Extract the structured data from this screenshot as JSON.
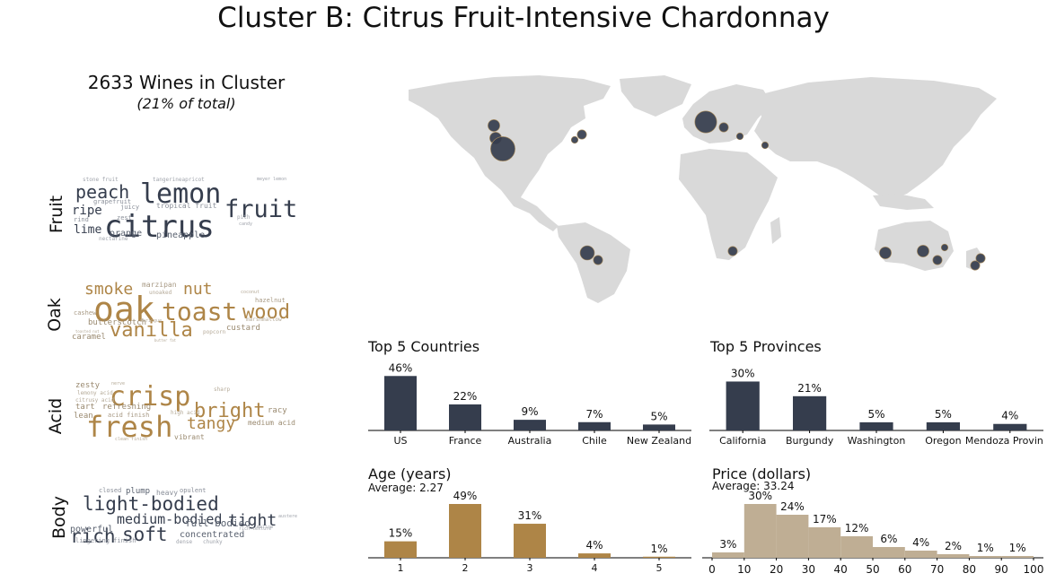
{
  "title": "Cluster B: Citrus Fruit-Intensive Chardonnay",
  "cluster": {
    "count_text": "2633 Wines in Cluster",
    "share_text": "(21% of total)"
  },
  "colors": {
    "navy": "#353d4d",
    "gold": "#ae8547",
    "tan": "#bfae94",
    "land": "#d9d9d9"
  },
  "wordclouds": [
    {
      "label": "Fruit",
      "words": [
        {
          "t": "citrus",
          "s": 34,
          "c": "#353d4d"
        },
        {
          "t": "lemon",
          "s": 30,
          "c": "#353d4d"
        },
        {
          "t": "fruit",
          "s": 27,
          "c": "#353d4d"
        },
        {
          "t": "peach",
          "s": 20,
          "c": "#353d4d"
        },
        {
          "t": "ripe",
          "s": 14,
          "c": "#353d4d"
        },
        {
          "t": "lime",
          "s": 13,
          "c": "#353d4d"
        },
        {
          "t": "orange",
          "s": 10,
          "c": "#5a6270"
        },
        {
          "t": "pineapple",
          "s": 10,
          "c": "#5a6270"
        },
        {
          "t": "tropical fruit",
          "s": 8,
          "c": "#8a8f99"
        },
        {
          "t": "grapefruit",
          "s": 7,
          "c": "#8a8f99"
        },
        {
          "t": "juicy",
          "s": 7,
          "c": "#8a8f99"
        },
        {
          "t": "zest",
          "s": 7,
          "c": "#8a8f99"
        },
        {
          "t": "rind",
          "s": 7,
          "c": "#8a8f99"
        },
        {
          "t": "nectarine",
          "s": 6,
          "c": "#a0a4ac"
        },
        {
          "t": "stone fruit",
          "s": 6,
          "c": "#a0a4ac"
        },
        {
          "t": "tangerineapricot",
          "s": 6,
          "c": "#a0a4ac"
        },
        {
          "t": "meyer lemon",
          "s": 5,
          "c": "#a0a4ac"
        },
        {
          "t": "pith",
          "s": 6,
          "c": "#a0a4ac"
        },
        {
          "t": "candy",
          "s": 5,
          "c": "#a0a4ac"
        }
      ]
    },
    {
      "label": "Oak",
      "words": [
        {
          "t": "oak",
          "s": 38,
          "c": "#ae8547"
        },
        {
          "t": "toast",
          "s": 28,
          "c": "#ae8547"
        },
        {
          "t": "vanilla",
          "s": 22,
          "c": "#ae8547"
        },
        {
          "t": "wood",
          "s": 22,
          "c": "#ae8547"
        },
        {
          "t": "smoke",
          "s": 18,
          "c": "#ae8547"
        },
        {
          "t": "nut",
          "s": 18,
          "c": "#ae8547"
        },
        {
          "t": "butterscotch",
          "s": 9,
          "c": "#9a8a70"
        },
        {
          "t": "caramel",
          "s": 9,
          "c": "#9a8a70"
        },
        {
          "t": "custard",
          "s": 9,
          "c": "#9a8a70"
        },
        {
          "t": "marzipan",
          "s": 8,
          "c": "#a89a85"
        },
        {
          "t": "hazelnut",
          "s": 7,
          "c": "#a89a85"
        },
        {
          "t": "cashew",
          "s": 7,
          "c": "#a89a85"
        },
        {
          "t": "unoaked",
          "s": 6,
          "c": "#b5aa98"
        },
        {
          "t": "marshmallow",
          "s": 6,
          "c": "#b5aa98"
        },
        {
          "t": "popcorn",
          "s": 6,
          "c": "#b5aa98"
        },
        {
          "t": "coconut",
          "s": 5,
          "c": "#b5aa98"
        },
        {
          "t": "meringue",
          "s": 5,
          "c": "#b5aa98"
        },
        {
          "t": "toasted nut",
          "s": 4,
          "c": "#b5aa98"
        },
        {
          "t": "butter fat",
          "s": 4,
          "c": "#b5aa98"
        }
      ]
    },
    {
      "label": "Acid",
      "words": [
        {
          "t": "fresh",
          "s": 32,
          "c": "#ae8547"
        },
        {
          "t": "crisp",
          "s": 30,
          "c": "#ae8547"
        },
        {
          "t": "bright",
          "s": 22,
          "c": "#ae8547"
        },
        {
          "t": "tangy",
          "s": 18,
          "c": "#ae8547"
        },
        {
          "t": "zesty",
          "s": 9,
          "c": "#9a8a70"
        },
        {
          "t": "tart",
          "s": 9,
          "c": "#9a8a70"
        },
        {
          "t": "refreshing",
          "s": 9,
          "c": "#9a8a70"
        },
        {
          "t": "lean",
          "s": 9,
          "c": "#9a8a70"
        },
        {
          "t": "racy",
          "s": 9,
          "c": "#9a8a70"
        },
        {
          "t": "vibrant",
          "s": 8,
          "c": "#9a8a70"
        },
        {
          "t": "medium acid",
          "s": 8,
          "c": "#9a8a70"
        },
        {
          "t": "acid finish",
          "s": 7,
          "c": "#a89a85"
        },
        {
          "t": "lemony acid",
          "s": 6,
          "c": "#b5aa98"
        },
        {
          "t": "citrusy acid",
          "s": 6,
          "c": "#b5aa98"
        },
        {
          "t": "high acid",
          "s": 6,
          "c": "#b5aa98"
        },
        {
          "t": "sharp",
          "s": 6,
          "c": "#b5aa98"
        },
        {
          "t": "nerve",
          "s": 5,
          "c": "#b5aa98"
        },
        {
          "t": "clean finish",
          "s": 5,
          "c": "#b5aa98"
        }
      ]
    },
    {
      "label": "Body",
      "words": [
        {
          "t": "light-bodied",
          "s": 21,
          "c": "#353d4d"
        },
        {
          "t": "medium-bodied",
          "s": 15,
          "c": "#353d4d"
        },
        {
          "t": "tight",
          "s": 18,
          "c": "#353d4d"
        },
        {
          "t": "rich",
          "s": 21,
          "c": "#353d4d"
        },
        {
          "t": "soft",
          "s": 21,
          "c": "#353d4d"
        },
        {
          "t": "powerful",
          "s": 10,
          "c": "#5a6270"
        },
        {
          "t": "full-bodied",
          "s": 11,
          "c": "#5a6270"
        },
        {
          "t": "concentrated",
          "s": 10,
          "c": "#5a6270"
        },
        {
          "t": "plump",
          "s": 9,
          "c": "#5a6270"
        },
        {
          "t": "heavy",
          "s": 8,
          "c": "#8a8f99"
        },
        {
          "t": "opulent",
          "s": 7,
          "c": "#8a8f99"
        },
        {
          "t": "closed",
          "s": 7,
          "c": "#8a8f99"
        },
        {
          "t": "lingering finish",
          "s": 7,
          "c": "#8a8f99"
        },
        {
          "t": "dense",
          "s": 6,
          "c": "#a0a4ac"
        },
        {
          "t": "chunky",
          "s": 6,
          "c": "#a0a4ac"
        },
        {
          "t": "rich texture",
          "s": 5,
          "c": "#a0a4ac"
        },
        {
          "t": "austere",
          "s": 5,
          "c": "#a0a4ac"
        },
        {
          "t": "mellow",
          "s": 5,
          "c": "#a0a4ac"
        }
      ]
    }
  ],
  "map": {
    "bubbles": [
      {
        "region": "Washington",
        "size": 4
      },
      {
        "region": "Oregon",
        "size": 4
      },
      {
        "region": "California",
        "size": 9
      },
      {
        "region": "New York",
        "size": 3
      },
      {
        "region": "Virginia",
        "size": 2
      },
      {
        "region": "Burgundy",
        "size": 8
      },
      {
        "region": "Italy",
        "size": 3
      },
      {
        "region": "Greece",
        "size": 2
      },
      {
        "region": "Israel",
        "size": 2
      },
      {
        "region": "Chile",
        "size": 5
      },
      {
        "region": "Mendoza",
        "size": 3
      },
      {
        "region": "South Africa",
        "size": 3
      },
      {
        "region": "Western Australia",
        "size": 4
      },
      {
        "region": "South Australia",
        "size": 4
      },
      {
        "region": "Victoria",
        "size": 3
      },
      {
        "region": "New South Wales",
        "size": 2
      },
      {
        "region": "New Zealand North",
        "size": 3
      },
      {
        "region": "New Zealand South",
        "size": 3
      }
    ]
  },
  "chart_data": [
    {
      "type": "bar",
      "title": "Top 5 Countries",
      "categories": [
        "US",
        "France",
        "Australia",
        "Chile",
        "New Zealand"
      ],
      "values": [
        46,
        22,
        9,
        7,
        5
      ],
      "labels": [
        "46%",
        "22%",
        "9%",
        "7%",
        "5%"
      ],
      "ylim": [
        0,
        50
      ],
      "color": "#353d4d"
    },
    {
      "type": "bar",
      "title": "Top 5 Provinces",
      "categories": [
        "California",
        "Burgundy",
        "Washington",
        "Oregon",
        "Mendoza Province"
      ],
      "values": [
        30,
        21,
        5,
        5,
        4
      ],
      "labels": [
        "30%",
        "21%",
        "5%",
        "5%",
        "4%"
      ],
      "ylim": [
        0,
        33
      ],
      "color": "#353d4d"
    },
    {
      "type": "bar",
      "title": "Age (years)",
      "subtitle": "Average: 2.27",
      "categories": [
        "1",
        "2",
        "3",
        "4",
        "5"
      ],
      "values": [
        15,
        49,
        31,
        4,
        1
      ],
      "labels": [
        "15%",
        "49%",
        "31%",
        "4%",
        "1%"
      ],
      "ylim": [
        0,
        49
      ],
      "color": "#ae8547"
    },
    {
      "type": "bar",
      "title": "Price (dollars)",
      "subtitle": "Average: 33.24",
      "categories": [
        "0-10",
        "10-20",
        "20-30",
        "30-40",
        "40-50",
        "50-60",
        "60-70",
        "70-80",
        "80-90",
        "90-100"
      ],
      "values": [
        3,
        30,
        24,
        17,
        12,
        6,
        4,
        2,
        1,
        1
      ],
      "labels": [
        "3%",
        "30%",
        "24%",
        "17%",
        "12%",
        "6%",
        "4%",
        "2%",
        "1%",
        "1%"
      ],
      "xticks": [
        "0",
        "10",
        "20",
        "30",
        "40",
        "50",
        "60",
        "70",
        "80",
        "90",
        "100"
      ],
      "xlim": [
        0,
        100
      ],
      "ylim": [
        0,
        30
      ],
      "color": "#bfae94"
    }
  ]
}
